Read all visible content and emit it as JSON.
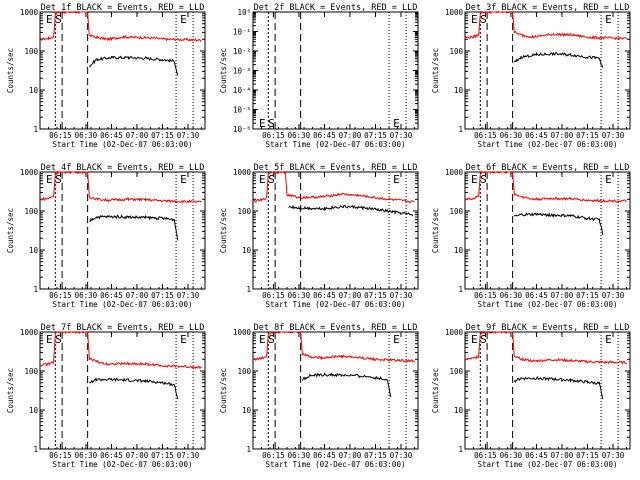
{
  "chart_data": {
    "type": "line",
    "y_scale": "log",
    "x_label": "Start Time (02-Dec-07 06:03:00)",
    "y_label": "Counts/sec",
    "x_tick_labels": [
      "06:15",
      "06:30",
      "06:45",
      "07:00",
      "07:15",
      "07:30"
    ],
    "x_range": [
      "06:03",
      "07:40"
    ],
    "series_colors": {
      "events": "#000000",
      "lld": "#ff0000"
    },
    "markers": {
      "ttl": [
        "06:06",
        "06:20"
      ],
      "vlines": [
        "06:12",
        "06:16",
        "06:31",
        "07:23",
        "07:33"
      ]
    },
    "panels": [
      {
        "title": "Det 1f BLACK = Events, RED = LLD",
        "y_range": [
          1,
          1000
        ],
        "y_tick_labels": [
          "1",
          "10",
          "100",
          "1000"
        ],
        "marker_labels": [
          "E",
          "S",
          "E"
        ],
        "lld": [
          [
            "06:03",
            200
          ],
          [
            "06:08",
            210
          ],
          [
            "06:11",
            230
          ],
          [
            "06:12",
            900
          ],
          [
            "06:14",
            1000
          ],
          [
            "06:31",
            1000
          ],
          [
            "06:32",
            250
          ],
          [
            "06:37",
            220
          ],
          [
            "06:43",
            200
          ],
          [
            "06:52",
            230
          ],
          [
            "07:05",
            220
          ],
          [
            "07:18",
            200
          ],
          [
            "07:38",
            190
          ]
        ],
        "events": [
          [
            "06:32",
            40
          ],
          [
            "06:36",
            60
          ],
          [
            "06:45",
            68
          ],
          [
            "06:55",
            68
          ],
          [
            "07:05",
            65
          ],
          [
            "07:15",
            60
          ],
          [
            "07:22",
            55
          ],
          [
            "07:24",
            22
          ]
        ]
      },
      {
        "title": "Det 2f BLACK = Events, RED = LLD",
        "y_range": [
          1e-06,
          1
        ],
        "y_tick_labels": [
          "10⁻⁶",
          "10⁻⁵",
          "10⁻⁴",
          "10⁻³",
          "10⁻²",
          "10⁻¹",
          "10⁰"
        ],
        "marker_labels": [
          "E",
          "S",
          "E"
        ],
        "lld": [],
        "events": []
      },
      {
        "title": "Det 3f BLACK = Events, RED = LLD",
        "y_range": [
          1,
          1000
        ],
        "y_tick_labels": [
          "1",
          "10",
          "100",
          "1000"
        ],
        "marker_labels": [
          "E",
          "S",
          "E"
        ],
        "lld": [
          [
            "06:03",
            220
          ],
          [
            "06:08",
            230
          ],
          [
            "06:11",
            260
          ],
          [
            "06:12",
            950
          ],
          [
            "06:14",
            1000
          ],
          [
            "06:31",
            1000
          ],
          [
            "06:32",
            300
          ],
          [
            "06:37",
            250
          ],
          [
            "06:43",
            230
          ],
          [
            "06:55",
            270
          ],
          [
            "07:05",
            260
          ],
          [
            "07:18",
            220
          ],
          [
            "07:38",
            210
          ]
        ],
        "events": [
          [
            "06:32",
            50
          ],
          [
            "06:36",
            70
          ],
          [
            "06:45",
            80
          ],
          [
            "06:55",
            85
          ],
          [
            "07:05",
            80
          ],
          [
            "07:15",
            70
          ],
          [
            "07:22",
            65
          ],
          [
            "07:24",
            35
          ]
        ]
      },
      {
        "title": "Det 4f BLACK = Events, RED = LLD",
        "y_range": [
          1,
          1000
        ],
        "y_tick_labels": [
          "1",
          "10",
          "100",
          "1000"
        ],
        "marker_labels": [
          "E",
          "S",
          "E"
        ],
        "lld": [
          [
            "06:03",
            200
          ],
          [
            "06:08",
            210
          ],
          [
            "06:11",
            240
          ],
          [
            "06:12",
            900
          ],
          [
            "06:14",
            1000
          ],
          [
            "06:31",
            1000
          ],
          [
            "06:32",
            230
          ],
          [
            "06:37",
            200
          ],
          [
            "06:43",
            190
          ],
          [
            "06:55",
            200
          ],
          [
            "07:05",
            195
          ],
          [
            "07:18",
            180
          ],
          [
            "07:38",
            170
          ]
        ],
        "events": [
          [
            "06:32",
            55
          ],
          [
            "06:36",
            70
          ],
          [
            "06:45",
            72
          ],
          [
            "06:55",
            70
          ],
          [
            "07:05",
            68
          ],
          [
            "07:15",
            65
          ],
          [
            "07:22",
            60
          ],
          [
            "07:24",
            18
          ]
        ]
      },
      {
        "title": "Det 5f BLACK = Events, RED = LLD",
        "y_range": [
          1,
          1000
        ],
        "y_tick_labels": [
          "1",
          "10",
          "100",
          "1000"
        ],
        "marker_labels": [
          "E",
          "S",
          "E"
        ],
        "lld": [
          [
            "06:03",
            180
          ],
          [
            "06:08",
            190
          ],
          [
            "06:11",
            220
          ],
          [
            "06:12",
            900
          ],
          [
            "06:14",
            1000
          ],
          [
            "06:22",
            1000
          ],
          [
            "06:23",
            260
          ],
          [
            "06:30",
            220
          ],
          [
            "06:43",
            230
          ],
          [
            "06:55",
            270
          ],
          [
            "07:05",
            250
          ],
          [
            "07:18",
            210
          ],
          [
            "07:38",
            170
          ]
        ],
        "events": [
          [
            "06:24",
            130
          ],
          [
            "06:30",
            120
          ],
          [
            "06:45",
            115
          ],
          [
            "06:55",
            130
          ],
          [
            "07:05",
            125
          ],
          [
            "07:15",
            110
          ],
          [
            "07:25",
            95
          ],
          [
            "07:37",
            80
          ]
        ]
      },
      {
        "title": "Det 6f BLACK = Events, RED = LLD",
        "y_range": [
          1,
          1000
        ],
        "y_tick_labels": [
          "1",
          "10",
          "100",
          "1000"
        ],
        "marker_labels": [
          "E",
          "S",
          "E"
        ],
        "lld": [
          [
            "06:03",
            200
          ],
          [
            "06:08",
            210
          ],
          [
            "06:11",
            240
          ],
          [
            "06:12",
            900
          ],
          [
            "06:14",
            1000
          ],
          [
            "06:31",
            1000
          ],
          [
            "06:32",
            270
          ],
          [
            "06:37",
            230
          ],
          [
            "06:43",
            200
          ],
          [
            "06:55",
            210
          ],
          [
            "07:05",
            205
          ],
          [
            "07:18",
            185
          ],
          [
            "07:38",
            180
          ]
        ],
        "events": [
          [
            "06:32",
            70
          ],
          [
            "06:36",
            80
          ],
          [
            "06:45",
            82
          ],
          [
            "06:55",
            78
          ],
          [
            "07:05",
            75
          ],
          [
            "07:15",
            65
          ],
          [
            "07:22",
            60
          ],
          [
            "07:24",
            25
          ]
        ]
      },
      {
        "title": "Det 7f BLACK = Events, RED = LLD",
        "y_range": [
          1,
          1000
        ],
        "y_tick_labels": [
          "1",
          "10",
          "100",
          "1000"
        ],
        "marker_labels": [
          "E",
          "S",
          "E"
        ],
        "lld": [
          [
            "06:03",
            140
          ],
          [
            "06:08",
            150
          ],
          [
            "06:11",
            170
          ],
          [
            "06:12",
            900
          ],
          [
            "06:14",
            1000
          ],
          [
            "06:31",
            1000
          ],
          [
            "06:32",
            210
          ],
          [
            "06:37",
            170
          ],
          [
            "06:43",
            150
          ],
          [
            "06:55",
            155
          ],
          [
            "07:05",
            150
          ],
          [
            "07:18",
            135
          ],
          [
            "07:38",
            125
          ]
        ],
        "events": [
          [
            "06:32",
            50
          ],
          [
            "06:36",
            60
          ],
          [
            "06:45",
            60
          ],
          [
            "06:55",
            58
          ],
          [
            "07:05",
            55
          ],
          [
            "07:15",
            50
          ],
          [
            "07:22",
            45
          ],
          [
            "07:24",
            18
          ]
        ]
      },
      {
        "title": "Det 8f BLACK = Events, RED = LLD",
        "y_range": [
          1,
          1000
        ],
        "y_tick_labels": [
          "1",
          "10",
          "100",
          "1000"
        ],
        "marker_labels": [
          "E",
          "S",
          "E"
        ],
        "lld": [
          [
            "06:03",
            200
          ],
          [
            "06:08",
            210
          ],
          [
            "06:11",
            240
          ],
          [
            "06:12",
            900
          ],
          [
            "06:14",
            1000
          ],
          [
            "06:31",
            1000
          ],
          [
            "06:32",
            280
          ],
          [
            "06:37",
            230
          ],
          [
            "06:43",
            220
          ],
          [
            "06:55",
            240
          ],
          [
            "07:05",
            220
          ],
          [
            "07:18",
            195
          ],
          [
            "07:38",
            180
          ]
        ],
        "events": [
          [
            "06:32",
            60
          ],
          [
            "06:36",
            75
          ],
          [
            "06:45",
            80
          ],
          [
            "06:55",
            78
          ],
          [
            "07:05",
            75
          ],
          [
            "07:15",
            68
          ],
          [
            "07:22",
            60
          ],
          [
            "07:24",
            22
          ]
        ]
      },
      {
        "title": "Det 9f BLACK = Events, RED = LLD",
        "y_range": [
          1,
          1000
        ],
        "y_tick_labels": [
          "1",
          "10",
          "100",
          "1000"
        ],
        "marker_labels": [
          "E",
          "S",
          "E"
        ],
        "lld": [
          [
            "06:03",
            200
          ],
          [
            "06:08",
            210
          ],
          [
            "06:11",
            240
          ],
          [
            "06:12",
            900
          ],
          [
            "06:14",
            1000
          ],
          [
            "06:31",
            1000
          ],
          [
            "06:32",
            230
          ],
          [
            "06:37",
            200
          ],
          [
            "06:43",
            180
          ],
          [
            "06:55",
            195
          ],
          [
            "07:05",
            185
          ],
          [
            "07:18",
            170
          ],
          [
            "07:38",
            165
          ]
        ],
        "events": [
          [
            "06:32",
            55
          ],
          [
            "06:36",
            65
          ],
          [
            "06:45",
            65
          ],
          [
            "06:55",
            62
          ],
          [
            "07:05",
            58
          ],
          [
            "07:15",
            52
          ],
          [
            "07:22",
            48
          ],
          [
            "07:24",
            18
          ]
        ]
      }
    ]
  }
}
